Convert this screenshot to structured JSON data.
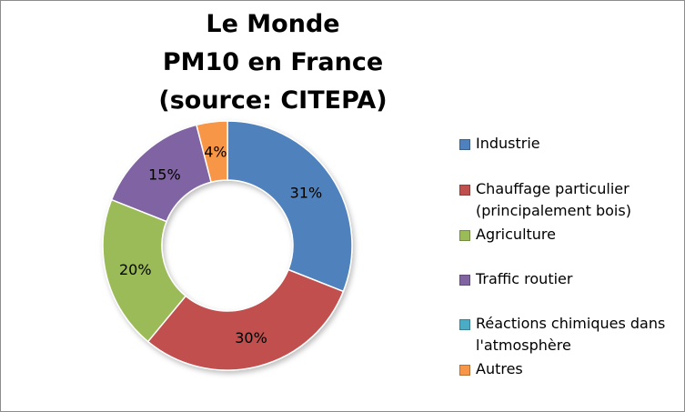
{
  "chart_data": {
    "type": "donut",
    "title_lines": [
      "Le Monde",
      "PM10 en France",
      "(source: CITEPA)"
    ],
    "categories": [
      "Industrie",
      "Chauffage particulier (principalement bois)",
      "Agriculture",
      "Traffic routier",
      "Réactions chimiques dans l'atmosphère",
      "Autres"
    ],
    "values": [
      31,
      30,
      20,
      15,
      0,
      4
    ],
    "data_labels": [
      "31%",
      "30%",
      "20%",
      "15%",
      "",
      "4%"
    ],
    "colors": [
      "#4f81bd",
      "#c0504d",
      "#9bbb59",
      "#8064a2",
      "#4bacc6",
      "#f79646"
    ],
    "legend_position": "right"
  }
}
